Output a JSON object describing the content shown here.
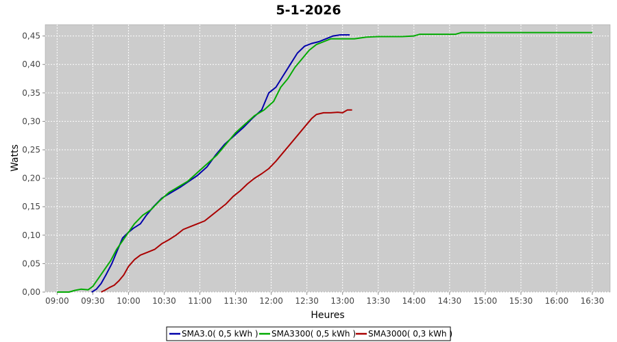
{
  "chart_data": {
    "type": "line",
    "title": "5-1-2026",
    "xlabel": "Heures",
    "ylabel": "Watts",
    "ylim": [
      0,
      0.47
    ],
    "xlim": [
      "08:50",
      "16:45"
    ],
    "grid": true,
    "legend_position": "bottom",
    "x_ticks": [
      "09:00",
      "09:30",
      "10:00",
      "10:30",
      "11:00",
      "11:30",
      "12:00",
      "12:30",
      "13:00",
      "13:30",
      "14:00",
      "14:30",
      "15:00",
      "15:30",
      "16:00",
      "16:30"
    ],
    "y_ticks": [
      "0,00",
      "0,05",
      "0,10",
      "0,15",
      "0,20",
      "0,25",
      "0,30",
      "0,35",
      "0,40",
      "0,45"
    ],
    "y_tick_values": [
      0,
      0.05,
      0.1,
      0.15,
      0.2,
      0.25,
      0.3,
      0.35,
      0.4,
      0.45
    ],
    "series": [
      {
        "name": "SMA3.0( 0,5 kWh )",
        "color": "#0000aa",
        "x": [
          "09:29",
          "09:33",
          "09:37",
          "09:41",
          "09:46",
          "09:51",
          "09:55",
          "10:00",
          "10:04",
          "10:10",
          "10:15",
          "10:21",
          "10:28",
          "10:36",
          "10:44",
          "10:51",
          "10:58",
          "11:06",
          "11:13",
          "11:21",
          "11:29",
          "11:37",
          "11:44",
          "11:52",
          "11:58",
          "12:04",
          "12:10",
          "12:16",
          "12:22",
          "12:28",
          "12:34",
          "12:40",
          "12:46",
          "12:52",
          "12:58",
          "13:02",
          "13:06"
        ],
        "values": [
          0.0,
          0.005,
          0.015,
          0.03,
          0.05,
          0.075,
          0.095,
          0.105,
          0.112,
          0.12,
          0.135,
          0.15,
          0.165,
          0.175,
          0.185,
          0.195,
          0.205,
          0.22,
          0.24,
          0.26,
          0.275,
          0.29,
          0.305,
          0.32,
          0.35,
          0.36,
          0.38,
          0.4,
          0.42,
          0.432,
          0.437,
          0.44,
          0.445,
          0.45,
          0.452,
          0.452,
          0.452
        ]
      },
      {
        "name": "SMA3300( 0,5 kWh )",
        "color": "#00aa00",
        "x": [
          "09:00",
          "09:10",
          "09:15",
          "09:20",
          "09:26",
          "09:30",
          "09:35",
          "09:40",
          "09:45",
          "09:50",
          "09:55",
          "10:00",
          "10:05",
          "10:12",
          "10:19",
          "10:26",
          "10:34",
          "10:42",
          "10:50",
          "10:58",
          "11:06",
          "11:14",
          "11:22",
          "11:30",
          "11:38",
          "11:46",
          "11:54",
          "12:02",
          "12:08",
          "12:14",
          "12:20",
          "12:26",
          "12:32",
          "12:38",
          "12:44",
          "12:50",
          "12:56",
          "13:02",
          "13:10",
          "13:20",
          "13:30",
          "13:40",
          "13:50",
          "14:00",
          "14:05",
          "14:10",
          "14:20",
          "14:30",
          "14:35",
          "14:40",
          "14:50",
          "15:00",
          "15:30",
          "16:00",
          "16:30"
        ],
        "values": [
          0.0,
          0.0,
          0.003,
          0.005,
          0.004,
          0.01,
          0.025,
          0.04,
          0.055,
          0.075,
          0.09,
          0.105,
          0.12,
          0.135,
          0.145,
          0.16,
          0.175,
          0.185,
          0.195,
          0.21,
          0.225,
          0.24,
          0.26,
          0.28,
          0.295,
          0.31,
          0.32,
          0.335,
          0.36,
          0.375,
          0.395,
          0.41,
          0.425,
          0.435,
          0.44,
          0.445,
          0.445,
          0.445,
          0.445,
          0.448,
          0.449,
          0.449,
          0.449,
          0.45,
          0.453,
          0.453,
          0.453,
          0.453,
          0.453,
          0.456,
          0.456,
          0.456,
          0.456,
          0.456,
          0.456
        ]
      },
      {
        "name": "SMA3000( 0,3 kWh )",
        "color": "#aa0000",
        "x": [
          "09:37",
          "09:40",
          "09:44",
          "09:48",
          "09:52",
          "09:56",
          "10:00",
          "10:05",
          "10:10",
          "10:16",
          "10:22",
          "10:28",
          "10:34",
          "10:40",
          "10:46",
          "10:52",
          "10:58",
          "11:04",
          "11:10",
          "11:16",
          "11:22",
          "11:28",
          "11:34",
          "11:40",
          "11:46",
          "11:52",
          "11:58",
          "12:04",
          "12:10",
          "12:16",
          "12:22",
          "12:28",
          "12:34",
          "12:38",
          "12:44",
          "12:50",
          "12:56",
          "13:00",
          "13:04",
          "13:08"
        ],
        "values": [
          0.0,
          0.003,
          0.008,
          0.012,
          0.02,
          0.03,
          0.045,
          0.057,
          0.065,
          0.07,
          0.075,
          0.085,
          0.092,
          0.1,
          0.11,
          0.115,
          0.12,
          0.125,
          0.135,
          0.145,
          0.155,
          0.168,
          0.178,
          0.19,
          0.2,
          0.208,
          0.217,
          0.23,
          0.245,
          0.26,
          0.275,
          0.29,
          0.305,
          0.312,
          0.315,
          0.315,
          0.316,
          0.315,
          0.32,
          0.32
        ]
      }
    ]
  }
}
